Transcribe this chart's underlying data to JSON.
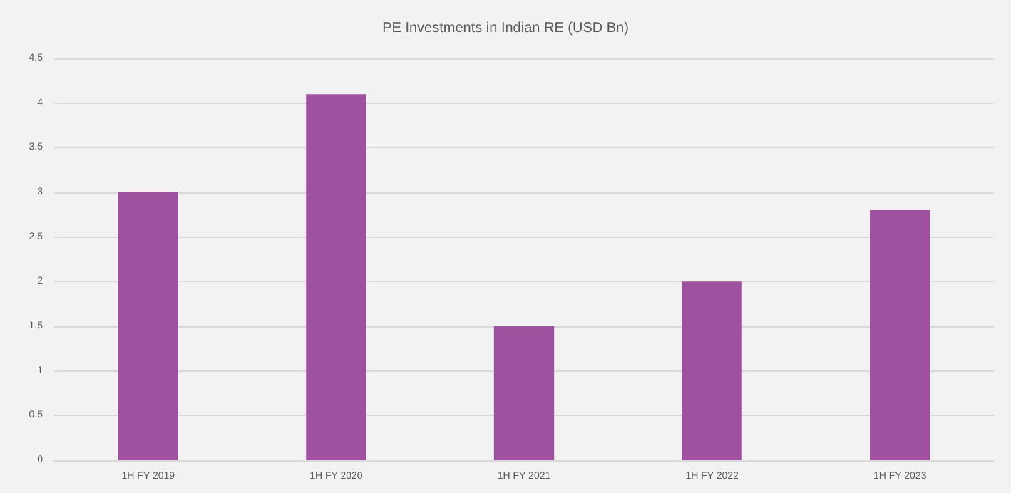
{
  "chart_data": {
    "type": "bar",
    "title": "PE Investments in Indian RE (USD Bn)",
    "categories": [
      "1H FY 2019",
      "1H FY 2020",
      "1H FY 2021",
      "1H FY 2022",
      "1H FY 2023"
    ],
    "values": [
      3,
      4.1,
      1.5,
      2,
      2.8
    ],
    "color": "#9e519e",
    "ylim": [
      0,
      4.5
    ],
    "yticks": [
      0,
      0.5,
      1,
      1.5,
      2,
      2.5,
      3,
      3.5,
      4,
      4.5
    ],
    "grid": "y"
  }
}
